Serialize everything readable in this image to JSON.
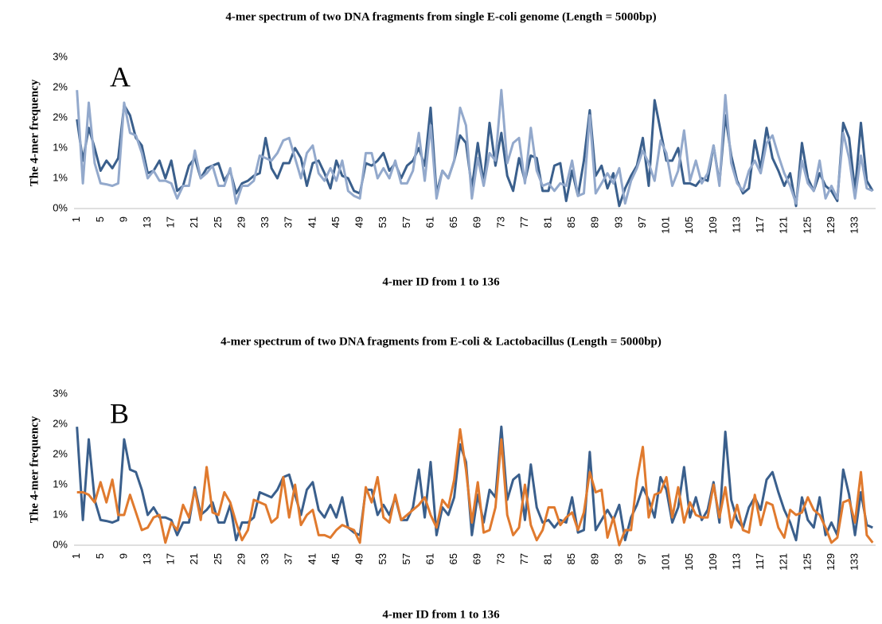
{
  "chart_data": [
    {
      "type": "line",
      "title": "4-mer spectrum of two DNA fragments from single E-coli genome (Length = 5000bp)",
      "annotation": "A",
      "x_label": "4-mer ID from 1 to 136",
      "y_label": "The 4-mer frequency",
      "ylim": [
        0,
        3
      ],
      "yticks": [
        {
          "value": 0,
          "label": "0%"
        },
        {
          "value": 0.6,
          "label": "1%"
        },
        {
          "value": 1.2,
          "label": "1%"
        },
        {
          "value": 1.8,
          "label": "2%"
        },
        {
          "value": 2.4,
          "label": "2%"
        },
        {
          "value": 3,
          "label": "3%"
        }
      ],
      "grid": false,
      "categories": [
        1,
        null,
        null,
        null,
        5,
        null,
        null,
        null,
        9,
        null,
        null,
        null,
        13,
        null,
        null,
        null,
        17,
        null,
        null,
        null,
        21,
        null,
        null,
        null,
        25,
        null,
        null,
        null,
        29,
        null,
        null,
        null,
        33,
        null,
        null,
        null,
        37,
        null,
        null,
        null,
        41,
        null,
        null,
        null,
        45,
        null,
        null,
        null,
        49,
        null,
        null,
        null,
        53,
        null,
        null,
        null,
        57,
        null,
        null,
        null,
        61,
        null,
        null,
        null,
        65,
        null,
        null,
        null,
        69,
        null,
        null,
        null,
        73,
        null,
        null,
        null,
        77,
        null,
        null,
        null,
        81,
        null,
        null,
        null,
        85,
        null,
        null,
        null,
        89,
        null,
        null,
        null,
        93,
        null,
        null,
        null,
        97,
        null,
        null,
        null,
        101,
        null,
        null,
        null,
        105,
        null,
        null,
        null,
        109,
        null,
        null,
        null,
        113,
        null,
        null,
        null,
        117,
        null,
        null,
        null,
        121,
        null,
        null,
        null,
        125,
        null,
        null,
        null,
        129,
        null,
        null,
        null,
        133,
        null,
        null,
        null
      ],
      "series": [
        {
          "color": "#3a5f8c",
          "values": [
            1.77,
            0.95,
            1.6,
            1.2,
            0.75,
            0.95,
            0.8,
            1.0,
            2.05,
            1.85,
            1.4,
            1.25,
            0.7,
            0.75,
            0.95,
            0.6,
            0.95,
            0.35,
            0.45,
            0.85,
            1.0,
            0.6,
            0.8,
            0.85,
            0.9,
            0.55,
            0.75,
            0.3,
            0.5,
            0.55,
            0.65,
            0.7,
            1.4,
            0.8,
            0.6,
            0.9,
            0.9,
            1.2,
            1.0,
            0.45,
            0.9,
            0.95,
            0.7,
            0.4,
            0.95,
            0.65,
            0.6,
            0.35,
            0.3,
            0.9,
            0.85,
            0.95,
            1.1,
            0.75,
            0.9,
            0.6,
            0.85,
            0.95,
            1.2,
            0.85,
            2.0,
            0.3,
            0.75,
            0.6,
            0.95,
            1.45,
            1.3,
            0.4,
            1.3,
            0.5,
            1.7,
            0.85,
            1.5,
            0.65,
            0.35,
            1.0,
            0.55,
            1.05,
            1.0,
            0.35,
            0.35,
            0.85,
            0.9,
            0.15,
            0.75,
            0.25,
            0.95,
            1.95,
            0.65,
            0.85,
            0.4,
            0.7,
            0.05,
            0.4,
            0.65,
            0.85,
            1.4,
            0.45,
            2.15,
            1.55,
            0.95,
            0.95,
            1.2,
            0.5,
            0.5,
            0.45,
            0.6,
            0.55,
            1.25,
            0.5,
            1.85,
            1.05,
            0.55,
            0.3,
            0.4,
            1.35,
            0.8,
            1.6,
            1.0,
            0.75,
            0.45,
            0.7,
            0.05,
            1.3,
            0.6,
            0.35,
            0.7,
            0.45,
            0.35,
            0.15,
            1.7,
            1.4,
            0.35,
            1.7,
            0.55,
            0.35
          ]
        },
        {
          "color": "#93a9cc",
          "values": [
            2.35,
            0.5,
            2.1,
            0.9,
            0.5,
            0.48,
            0.45,
            0.5,
            2.1,
            1.5,
            1.45,
            1.1,
            0.6,
            0.75,
            0.55,
            0.55,
            0.5,
            0.2,
            0.45,
            0.45,
            1.15,
            0.6,
            0.7,
            0.85,
            0.45,
            0.45,
            0.8,
            0.1,
            0.45,
            0.45,
            0.55,
            1.05,
            1.0,
            0.95,
            1.1,
            1.35,
            1.4,
            1.0,
            0.6,
            1.1,
            1.25,
            0.7,
            0.55,
            0.8,
            0.55,
            0.95,
            0.35,
            0.25,
            0.2,
            1.1,
            1.1,
            0.6,
            0.8,
            0.6,
            0.95,
            0.5,
            0.5,
            0.75,
            1.5,
            0.55,
            1.65,
            0.2,
            0.75,
            0.6,
            0.95,
            2.0,
            1.65,
            0.2,
            1.0,
            0.45,
            1.1,
            0.95,
            2.35,
            0.9,
            1.3,
            1.4,
            0.5,
            1.6,
            0.75,
            0.45,
            0.5,
            0.35,
            0.5,
            0.45,
            0.95,
            0.25,
            0.3,
            1.85,
            0.3,
            0.5,
            0.7,
            0.5,
            0.8,
            0.1,
            0.55,
            0.8,
            1.15,
            0.9,
            0.55,
            1.35,
            1.1,
            0.45,
            0.75,
            1.55,
            0.55,
            0.95,
            0.5,
            0.7,
            1.25,
            0.45,
            2.25,
            0.9,
            0.5,
            0.35,
            0.75,
            0.95,
            0.7,
            1.3,
            1.45,
            1.05,
            0.7,
            0.45,
            0.1,
            0.95,
            0.5,
            0.35,
            0.95,
            0.2,
            0.45,
            0.2,
            1.5,
            1.0,
            0.2,
            1.05,
            0.4,
            0.35
          ]
        }
      ]
    },
    {
      "type": "line",
      "title": "4-mer spectrum of two DNA fragments from E-coli & Lactobacillus (Length = 5000bp)",
      "annotation": "B",
      "x_label": "4-mer ID from 1 to 136",
      "y_label": "The 4-mer frequency",
      "ylim": [
        0,
        3
      ],
      "yticks": [
        {
          "value": 0,
          "label": "0%"
        },
        {
          "value": 0.6,
          "label": "1%"
        },
        {
          "value": 1.2,
          "label": "1%"
        },
        {
          "value": 1.8,
          "label": "2%"
        },
        {
          "value": 2.4,
          "label": "2%"
        },
        {
          "value": 3,
          "label": "3%"
        }
      ],
      "grid": false,
      "categories": [
        1,
        null,
        null,
        null,
        5,
        null,
        null,
        null,
        9,
        null,
        null,
        null,
        13,
        null,
        null,
        null,
        17,
        null,
        null,
        null,
        21,
        null,
        null,
        null,
        25,
        null,
        null,
        null,
        29,
        null,
        null,
        null,
        33,
        null,
        null,
        null,
        37,
        null,
        null,
        null,
        41,
        null,
        null,
        null,
        45,
        null,
        null,
        null,
        49,
        null,
        null,
        null,
        53,
        null,
        null,
        null,
        57,
        null,
        null,
        null,
        61,
        null,
        null,
        null,
        65,
        null,
        null,
        null,
        69,
        null,
        null,
        null,
        73,
        null,
        null,
        null,
        77,
        null,
        null,
        null,
        81,
        null,
        null,
        null,
        85,
        null,
        null,
        null,
        89,
        null,
        null,
        null,
        93,
        null,
        null,
        null,
        97,
        null,
        null,
        null,
        101,
        null,
        null,
        null,
        105,
        null,
        null,
        null,
        109,
        null,
        null,
        null,
        113,
        null,
        null,
        null,
        117,
        null,
        null,
        null,
        121,
        null,
        null,
        null,
        125,
        null,
        null,
        null,
        129,
        null,
        null,
        null,
        133,
        null,
        null,
        null
      ],
      "series": [
        {
          "color": "#3a5f8c",
          "values": [
            2.35,
            0.5,
            2.1,
            0.9,
            0.5,
            0.48,
            0.45,
            0.5,
            2.1,
            1.5,
            1.45,
            1.1,
            0.6,
            0.75,
            0.55,
            0.55,
            0.5,
            0.2,
            0.45,
            0.45,
            1.15,
            0.6,
            0.7,
            0.85,
            0.45,
            0.45,
            0.8,
            0.1,
            0.45,
            0.45,
            0.55,
            1.05,
            1.0,
            0.95,
            1.1,
            1.35,
            1.4,
            1.0,
            0.6,
            1.1,
            1.25,
            0.7,
            0.55,
            0.8,
            0.55,
            0.95,
            0.35,
            0.25,
            0.2,
            1.1,
            1.1,
            0.6,
            0.8,
            0.6,
            0.95,
            0.5,
            0.5,
            0.75,
            1.5,
            0.55,
            1.65,
            0.2,
            0.75,
            0.6,
            0.95,
            2.0,
            1.65,
            0.2,
            1.0,
            0.45,
            1.1,
            0.95,
            2.35,
            0.9,
            1.3,
            1.4,
            0.5,
            1.6,
            0.75,
            0.45,
            0.5,
            0.35,
            0.5,
            0.45,
            0.95,
            0.25,
            0.3,
            1.85,
            0.3,
            0.5,
            0.7,
            0.5,
            0.8,
            0.1,
            0.55,
            0.8,
            1.15,
            0.9,
            0.55,
            1.35,
            1.1,
            0.45,
            0.75,
            1.55,
            0.55,
            0.95,
            0.5,
            0.7,
            1.25,
            0.45,
            2.25,
            0.9,
            0.5,
            0.35,
            0.75,
            0.95,
            0.7,
            1.3,
            1.45,
            1.05,
            0.7,
            0.45,
            0.1,
            0.95,
            0.5,
            0.35,
            0.95,
            0.2,
            0.45,
            0.2,
            1.5,
            1.0,
            0.2,
            1.05,
            0.4,
            0.35
          ]
        },
        {
          "color": "#e07a2e",
          "values": [
            1.05,
            1.05,
            1.0,
            0.85,
            1.25,
            0.85,
            1.3,
            0.6,
            0.6,
            1.0,
            0.65,
            0.3,
            0.35,
            0.55,
            0.6,
            0.05,
            0.45,
            0.3,
            0.8,
            0.55,
            1.1,
            0.5,
            1.55,
            0.65,
            0.6,
            1.05,
            0.85,
            0.45,
            0.1,
            0.3,
            0.9,
            0.85,
            0.8,
            0.45,
            0.55,
            1.35,
            0.55,
            1.2,
            0.4,
            0.6,
            0.7,
            0.2,
            0.2,
            0.15,
            0.3,
            0.4,
            0.35,
            0.3,
            0.05,
            1.15,
            0.85,
            1.35,
            0.55,
            0.45,
            1.0,
            0.5,
            0.6,
            0.7,
            0.8,
            0.95,
            0.6,
            0.35,
            0.9,
            0.75,
            1.3,
            2.3,
            1.5,
            0.45,
            1.25,
            0.25,
            0.3,
            0.75,
            2.1,
            0.6,
            0.2,
            0.35,
            1.2,
            0.4,
            0.1,
            0.3,
            0.75,
            0.75,
            0.4,
            0.55,
            0.65,
            0.3,
            0.65,
            1.45,
            1.05,
            1.1,
            0.15,
            0.55,
            0.0,
            0.3,
            0.3,
            1.3,
            1.95,
            0.55,
            1.0,
            1.05,
            1.35,
            0.55,
            1.15,
            0.45,
            0.85,
            0.6,
            0.55,
            0.55,
            1.2,
            0.55,
            1.15,
            0.35,
            0.8,
            0.3,
            0.25,
            1.0,
            0.4,
            0.85,
            0.8,
            0.35,
            0.15,
            0.7,
            0.6,
            0.65,
            0.95,
            0.7,
            0.6,
            0.35,
            0.05,
            0.15,
            0.85,
            0.9,
            0.45,
            1.45,
            0.2,
            0.05
          ]
        }
      ]
    }
  ]
}
